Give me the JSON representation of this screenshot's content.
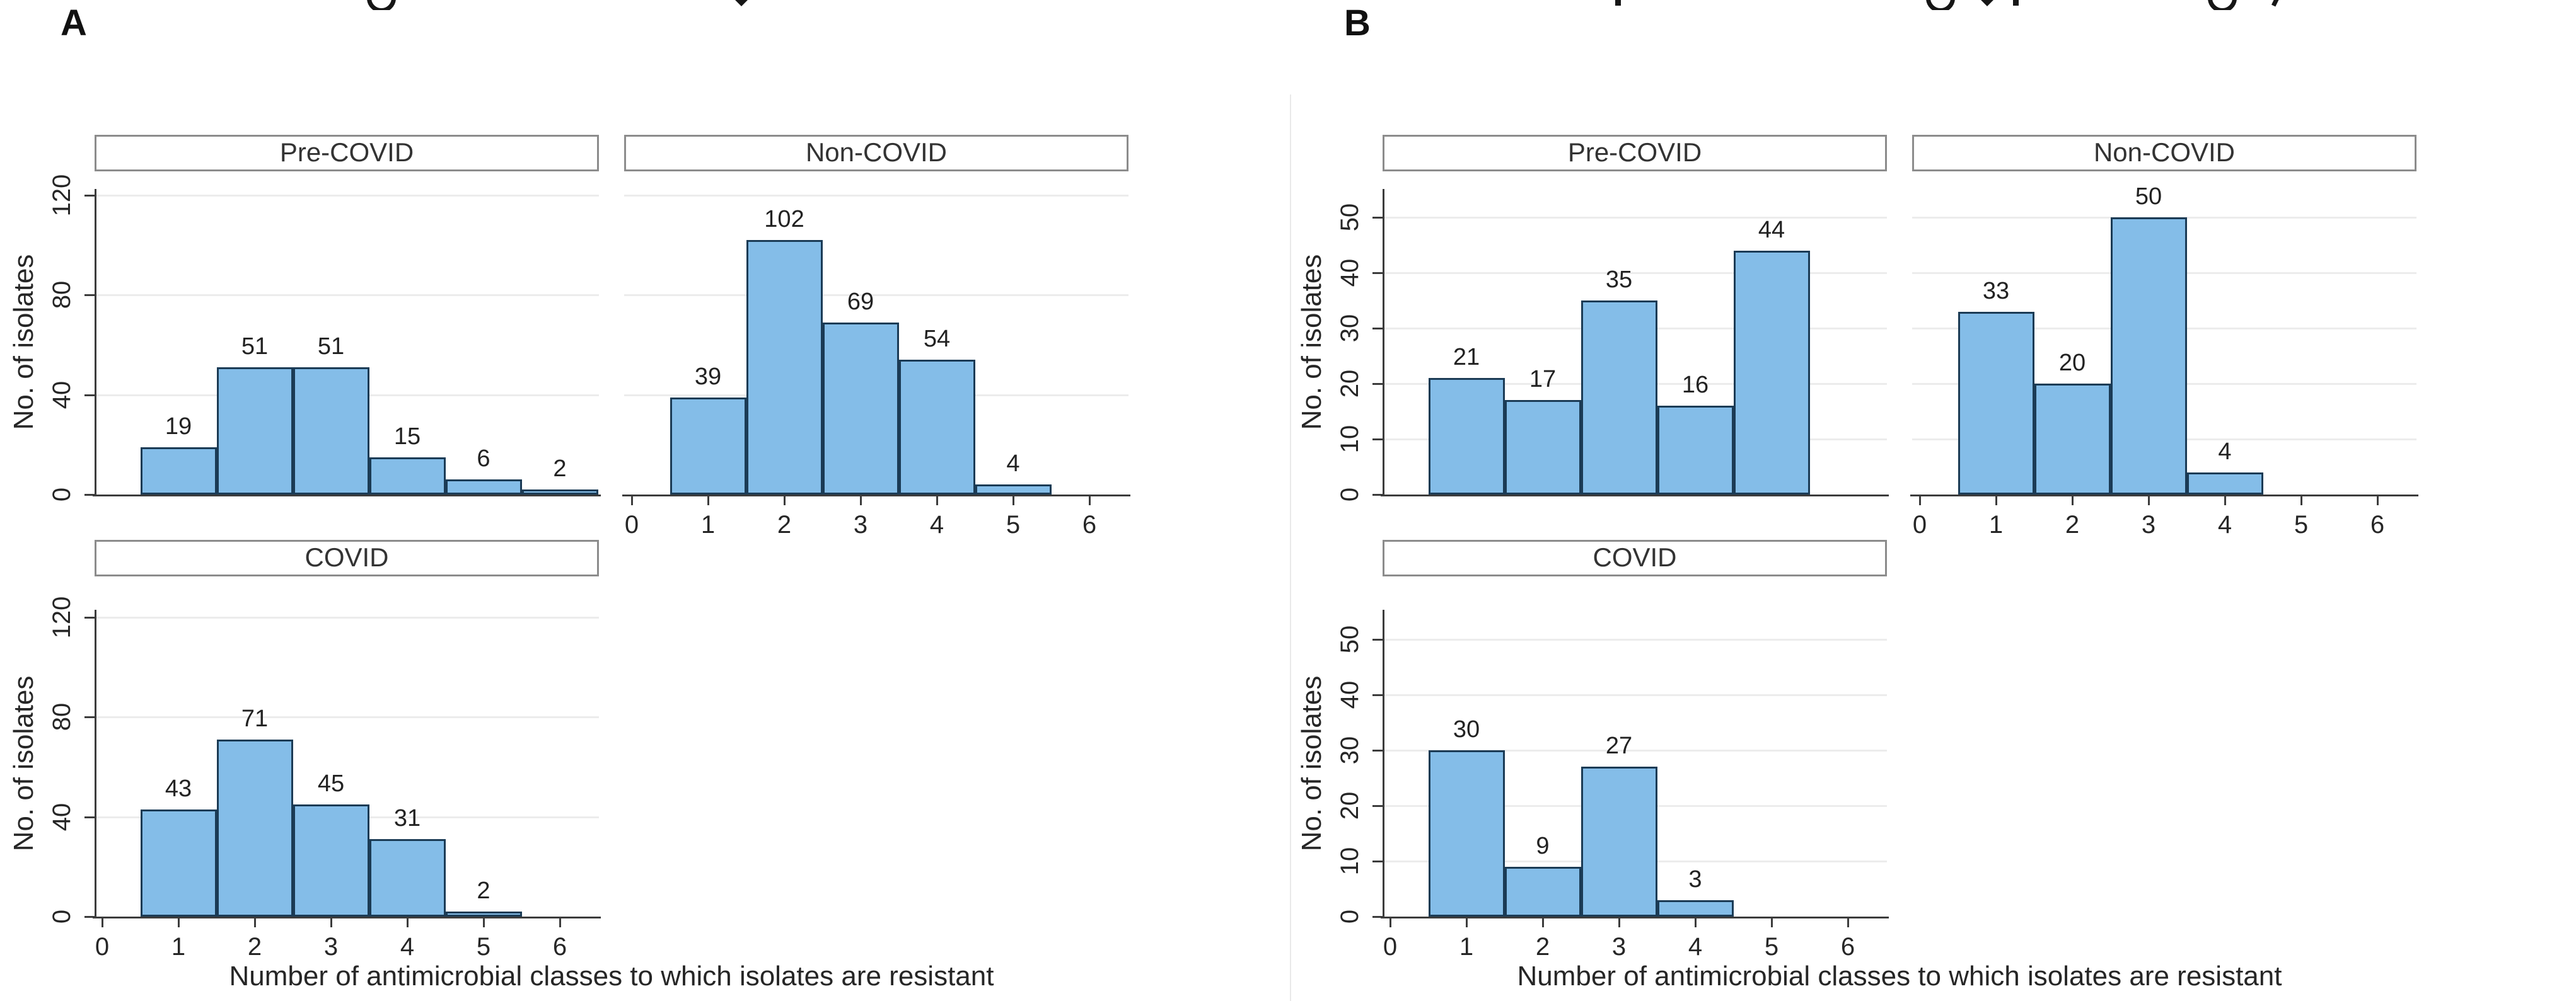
{
  "page": {
    "background": "#ffffff",
    "panels": {
      "A": {
        "label": "A",
        "xlabel": "Number of antimicrobial classes to which isolates are resistant",
        "ylabel": "No. of isolates"
      },
      "B": {
        "label": "B",
        "xlabel": "Number of antimicrobial classes to which isolates are resistant",
        "ylabel": "No. of isolates"
      }
    },
    "colors": {
      "bar_fill": "#84bde8",
      "bar_border": "#1b3b55",
      "gridline": "#ececec",
      "axis_line": "#3c3c3c",
      "header_border": "#8c8c8c",
      "text": "#262626"
    }
  },
  "chart_data": [
    {
      "type": "bar",
      "panel": "A",
      "facet": "Pre-COVID",
      "row": 0,
      "col": 0,
      "categories": [
        1,
        2,
        3,
        4,
        5,
        6
      ],
      "values": [
        19,
        51,
        51,
        15,
        6,
        2
      ],
      "title": "Pre-COVID",
      "xlabel": "Number of antimicrobial classes to which isolates are resistant",
      "ylabel": "No. of isolates",
      "ylim": [
        0,
        130
      ],
      "yticks": [
        0,
        40,
        80,
        120
      ],
      "xticks": [
        0,
        1,
        2,
        3,
        4,
        5,
        6
      ],
      "show_x_tick_labels": false,
      "show_y_tick_labels": true,
      "grid": true,
      "bar_value_labels": true,
      "legend": "none"
    },
    {
      "type": "bar",
      "panel": "A",
      "facet": "Non-COVID",
      "row": 0,
      "col": 1,
      "categories": [
        1,
        2,
        3,
        4,
        5
      ],
      "values": [
        39,
        102,
        69,
        54,
        4
      ],
      "title": "Non-COVID",
      "xlabel": "Number of antimicrobial classes to which isolates are resistant",
      "ylabel": "No. of isolates",
      "ylim": [
        0,
        130
      ],
      "yticks": [
        0,
        40,
        80,
        120
      ],
      "xticks": [
        0,
        1,
        2,
        3,
        4,
        5,
        6
      ],
      "show_x_tick_labels": true,
      "show_y_tick_labels": false,
      "grid": true,
      "bar_value_labels": true,
      "legend": "none"
    },
    {
      "type": "bar",
      "panel": "A",
      "facet": "COVID",
      "row": 1,
      "col": 0,
      "categories": [
        1,
        2,
        3,
        4,
        5
      ],
      "values": [
        43,
        71,
        45,
        31,
        2
      ],
      "title": "COVID",
      "xlabel": "Number of antimicrobial classes to which isolates are resistant",
      "ylabel": "No. of isolates",
      "ylim": [
        0,
        130
      ],
      "yticks": [
        0,
        40,
        80,
        120
      ],
      "xticks": [
        0,
        1,
        2,
        3,
        4,
        5,
        6
      ],
      "show_x_tick_labels": true,
      "show_y_tick_labels": true,
      "grid": true,
      "bar_value_labels": true,
      "legend": "none"
    },
    {
      "type": "bar",
      "panel": "B",
      "facet": "Pre-COVID",
      "row": 0,
      "col": 0,
      "categories": [
        1,
        2,
        3,
        4,
        5
      ],
      "values": [
        21,
        17,
        35,
        16,
        44
      ],
      "title": "Pre-COVID",
      "xlabel": "Number of antimicrobial classes to which isolates are resistant",
      "ylabel": "No. of isolates",
      "ylim": [
        0,
        55
      ],
      "yticks": [
        0,
        10,
        20,
        30,
        40,
        50
      ],
      "xticks": [
        0,
        1,
        2,
        3,
        4,
        5,
        6
      ],
      "show_x_tick_labels": false,
      "show_y_tick_labels": true,
      "grid": true,
      "bar_value_labels": true,
      "legend": "none"
    },
    {
      "type": "bar",
      "panel": "B",
      "facet": "Non-COVID",
      "row": 0,
      "col": 1,
      "categories": [
        1,
        2,
        3,
        4
      ],
      "values": [
        33,
        20,
        50,
        4
      ],
      "title": "Non-COVID",
      "xlabel": "Number of antimicrobial classes to which isolates are resistant",
      "ylabel": "No. of isolates",
      "ylim": [
        0,
        55
      ],
      "yticks": [
        0,
        10,
        20,
        30,
        40,
        50
      ],
      "xticks": [
        0,
        1,
        2,
        3,
        4,
        5,
        6
      ],
      "show_x_tick_labels": true,
      "show_y_tick_labels": false,
      "grid": true,
      "bar_value_labels": true,
      "legend": "none"
    },
    {
      "type": "bar",
      "panel": "B",
      "facet": "COVID",
      "row": 1,
      "col": 0,
      "categories": [
        1,
        2,
        3,
        4
      ],
      "values": [
        30,
        9,
        27,
        3
      ],
      "title": "COVID",
      "xlabel": "Number of antimicrobial classes to which isolates are resistant",
      "ylabel": "No. of isolates",
      "ylim": [
        0,
        55
      ],
      "yticks": [
        0,
        10,
        20,
        30,
        40,
        50
      ],
      "xticks": [
        0,
        1,
        2,
        3,
        4,
        5,
        6
      ],
      "show_x_tick_labels": true,
      "show_y_tick_labels": true,
      "grid": true,
      "bar_value_labels": true,
      "legend": "none"
    }
  ]
}
